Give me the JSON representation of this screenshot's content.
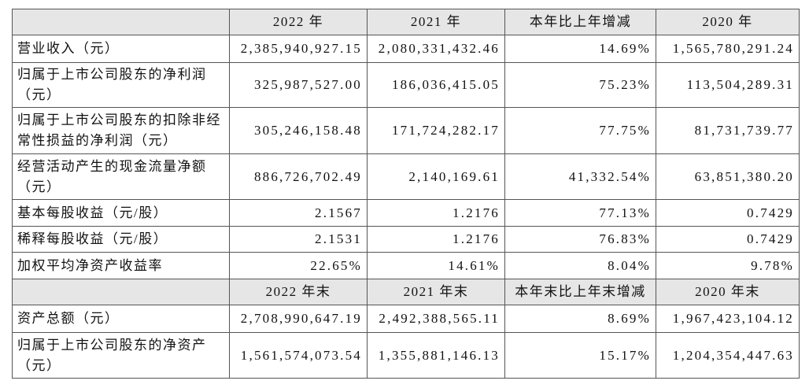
{
  "table": {
    "header": [
      "2022 年",
      "2021 年",
      "本年比上年增减",
      "2020 年"
    ],
    "rows": [
      [
        "营业收入（元）",
        "2,385,940,927.15",
        "2,080,331,432.46",
        "14.69%",
        "1,565,780,291.24"
      ],
      [
        "归属于上市公司股东的净利润（元）",
        "325,987,527.00",
        "186,036,415.05",
        "75.23%",
        "113,504,289.31"
      ],
      [
        "归属于上市公司股东的扣除非经常性损益的净利润（元）",
        "305,246,158.48",
        "171,724,282.17",
        "77.75%",
        "81,731,739.77"
      ],
      [
        "经营活动产生的现金流量净额（元）",
        "886,726,702.49",
        "2,140,169.61",
        "41,332.54%",
        "63,851,380.20"
      ],
      [
        "基本每股收益（元/股）",
        "2.1567",
        "1.2176",
        "77.13%",
        "0.7429"
      ],
      [
        "稀释每股收益（元/股）",
        "2.1531",
        "1.2176",
        "76.83%",
        "0.7429"
      ],
      [
        "加权平均净资产收益率",
        "22.65%",
        "14.61%",
        "8.04%",
        "9.78%"
      ]
    ],
    "header2": [
      "2022 年末",
      "2021 年末",
      "本年末比上年末增减",
      "2020 年末"
    ],
    "rows2": [
      [
        "资产总额（元）",
        "2,708,990,647.19",
        "2,492,388,565.11",
        "8.69%",
        "1,967,423,104.12"
      ],
      [
        "归属于上市公司股东的净资产（元）",
        "1,561,574,073.54",
        "1,355,881,146.13",
        "15.17%",
        "1,204,354,447.63"
      ]
    ]
  }
}
